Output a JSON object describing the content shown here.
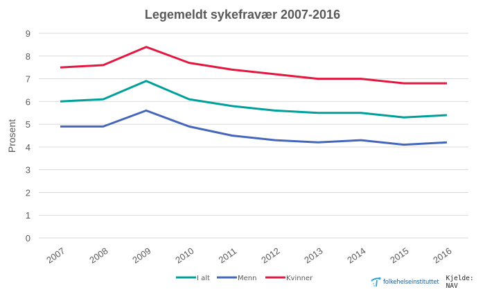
{
  "chart_data": {
    "type": "line",
    "title": "Legemeldt sykefravær 2007-2016",
    "xlabel": "",
    "ylabel": "Prosent",
    "ylim": [
      0,
      9
    ],
    "yticks": [
      "0",
      "1",
      "2",
      "3",
      "4",
      "5",
      "6",
      "7",
      "8",
      "9"
    ],
    "grid": true,
    "legend_position": "bottom",
    "categories": [
      "2007",
      "2008",
      "2009",
      "2010",
      "2011",
      "2012",
      "2013",
      "2014",
      "2015",
      "2016"
    ],
    "series": [
      {
        "name": "I alt",
        "color": "#00a09a",
        "values": [
          6.0,
          6.1,
          6.9,
          6.1,
          5.8,
          5.6,
          5.5,
          5.5,
          5.3,
          5.4
        ]
      },
      {
        "name": "Menn",
        "color": "#4466bb",
        "values": [
          4.9,
          4.9,
          5.6,
          4.9,
          4.5,
          4.3,
          4.2,
          4.3,
          4.1,
          4.2
        ]
      },
      {
        "name": "Kvinner",
        "color": "#e3173f",
        "values": [
          7.5,
          7.6,
          8.4,
          7.7,
          7.4,
          7.2,
          7.0,
          7.0,
          6.8,
          6.8
        ]
      }
    ]
  },
  "footer": {
    "logo_text": "folkehelseinstituttet",
    "source": "Kjelde: NAV"
  }
}
